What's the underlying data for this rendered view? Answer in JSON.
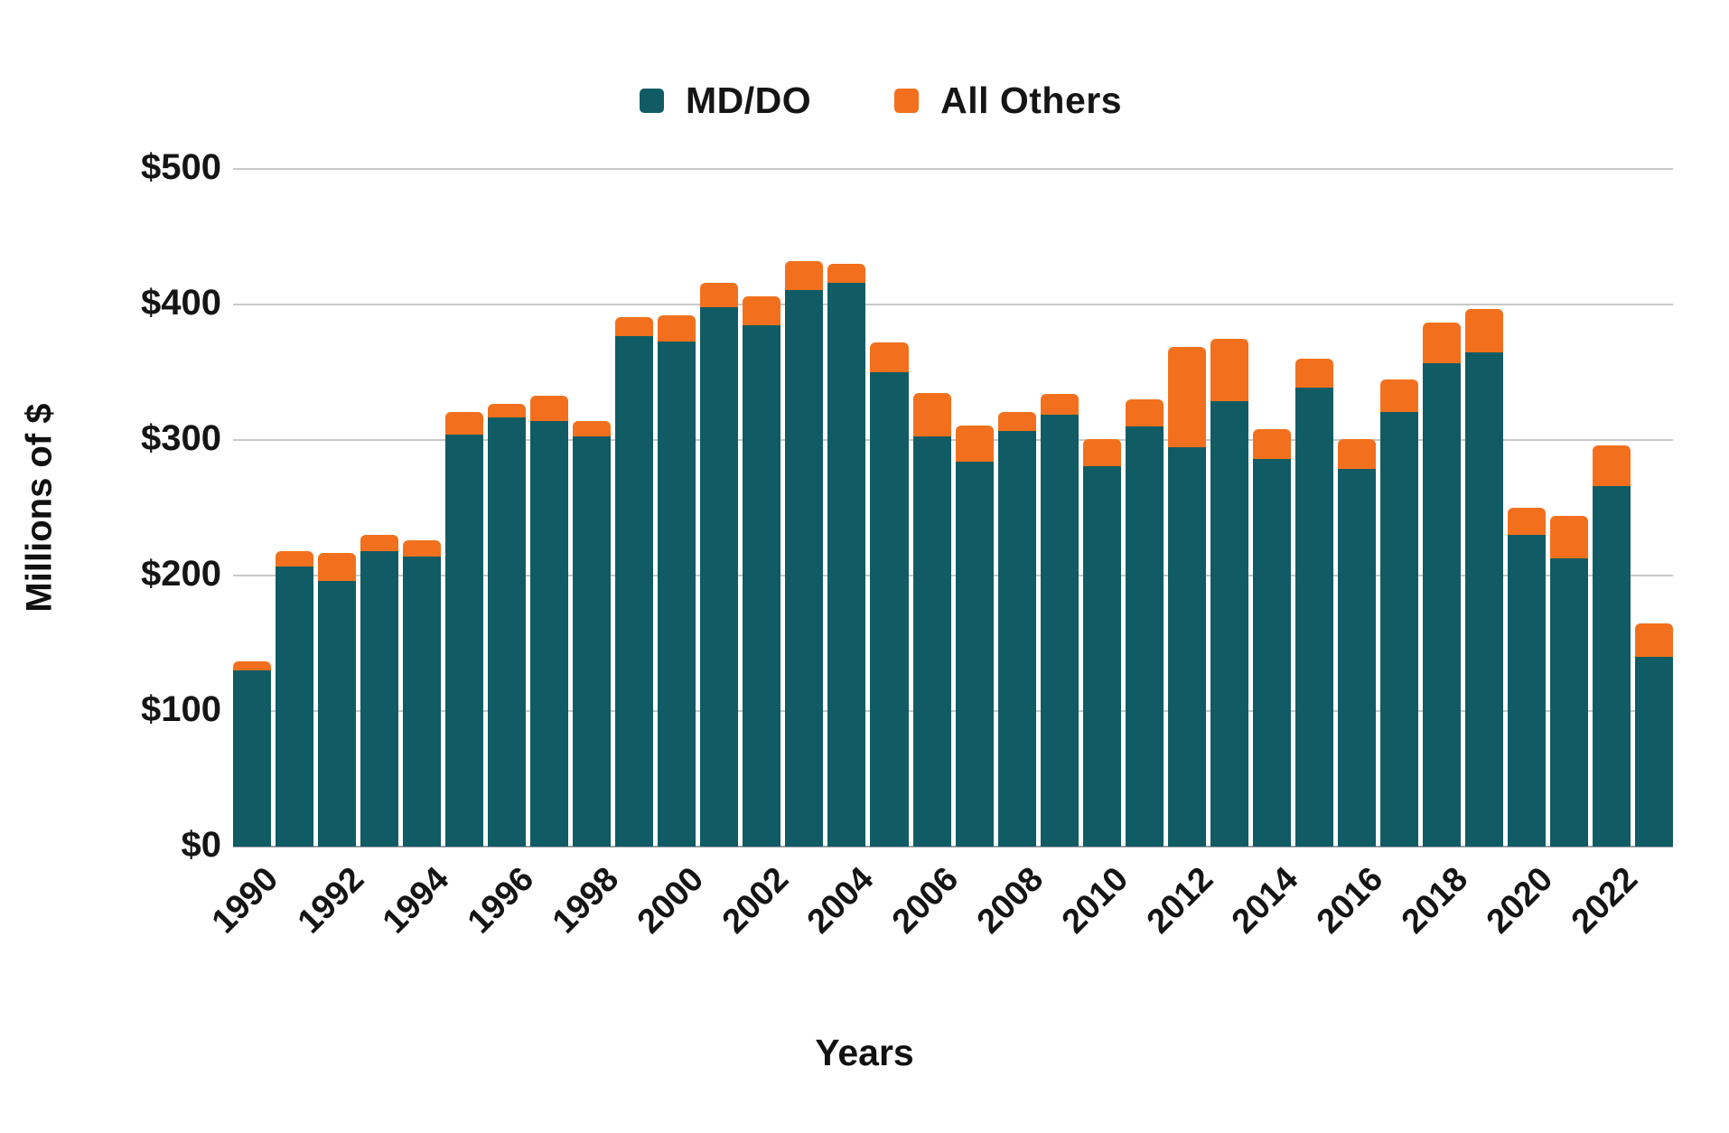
{
  "page": {
    "background": "#ffffff"
  },
  "legend": {
    "items": [
      {
        "label": "MD/DO",
        "color": "#115c64"
      },
      {
        "label": "All Others",
        "color": "#f2701d"
      }
    ]
  },
  "chart_data": {
    "type": "bar",
    "stacked": true,
    "title": "",
    "xlabel": "Years",
    "ylabel": "Millions of $",
    "ylim": [
      0,
      500
    ],
    "y_ticks": [
      0,
      100,
      200,
      300,
      400,
      500
    ],
    "y_tick_prefix": "$",
    "x_tick_labels": [
      1990,
      1992,
      1994,
      1996,
      1998,
      2000,
      2002,
      2004,
      2006,
      2008,
      2010,
      2012,
      2014,
      2016,
      2018,
      2020,
      2022
    ],
    "grid": true,
    "legend_position": "top",
    "categories": [
      1990,
      1991,
      1992,
      1993,
      1994,
      1995,
      1996,
      1997,
      1998,
      1999,
      2000,
      2001,
      2002,
      2003,
      2004,
      2005,
      2006,
      2007,
      2008,
      2009,
      2010,
      2011,
      2012,
      2013,
      2014,
      2015,
      2016,
      2017,
      2018,
      2019,
      2020,
      2021,
      2022,
      2023
    ],
    "series": [
      {
        "name": "MD/DO",
        "color": "#115c64",
        "values": [
          130,
          207,
          196,
          218,
          214,
          304,
          317,
          314,
          303,
          377,
          373,
          398,
          385,
          411,
          416,
          350,
          303,
          284,
          307,
          319,
          281,
          310,
          295,
          329,
          286,
          339,
          279,
          321,
          357,
          365,
          230,
          213,
          266,
          140
        ]
      },
      {
        "name": "All Others",
        "color": "#f2701d",
        "values": [
          7,
          11,
          21,
          12,
          12,
          17,
          10,
          19,
          11,
          14,
          19,
          18,
          21,
          21,
          14,
          22,
          32,
          27,
          14,
          15,
          20,
          20,
          74,
          46,
          22,
          21,
          22,
          24,
          30,
          32,
          20,
          31,
          30,
          25
        ]
      }
    ]
  }
}
